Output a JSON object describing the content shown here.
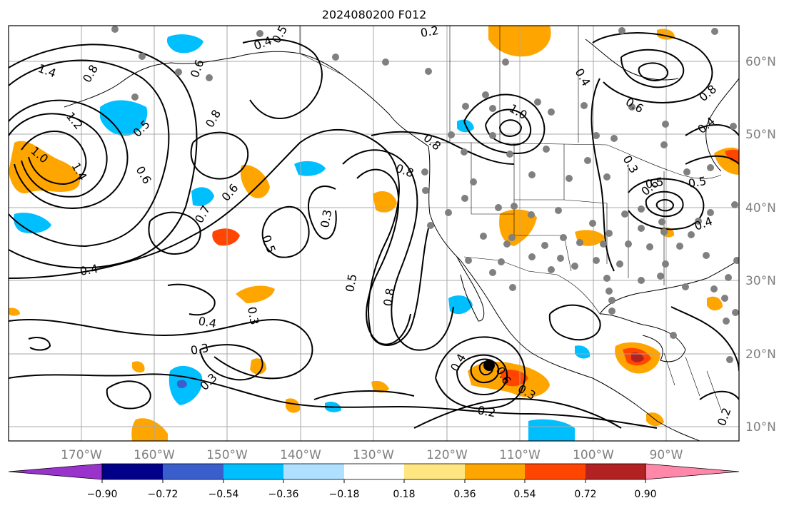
{
  "title": "2024080200 F012",
  "lon_labels": [
    "170°W",
    "160°W",
    "150°W",
    "140°W",
    "130°W",
    "120°W",
    "110°W",
    "100°W",
    "90°W"
  ],
  "lat_labels": [
    "60°N",
    "50°N",
    "40°N",
    "30°N",
    "20°N",
    "10°N"
  ],
  "contour_labels": [
    "1.4",
    "1.2",
    "1.0",
    "0.8",
    "1.4",
    "0.5",
    "0.6",
    "0.8",
    "0.4",
    "0.5",
    "0.6",
    "0.7",
    "0.6",
    "0.5",
    "0.3",
    "0.4",
    "0.3",
    "0.3",
    "0.4",
    "0.3",
    "0.5",
    "0.8",
    "0.8",
    "0.8",
    "0.2",
    "1.0",
    "0.5",
    "0.3",
    "0.6",
    "0.8",
    "0.4",
    "0.5",
    "0.6",
    "0.4",
    "0.2",
    "0.6",
    "0.4",
    "0.3",
    "0.2",
    "0.4"
  ],
  "colorbar": {
    "colors": [
      "#9933cc",
      "#000088",
      "#3a5fcd",
      "#00bfff",
      "#b0e0ff",
      "#ffffff",
      "#ffe680",
      "#ffa500",
      "#ff4500",
      "#b22222",
      "#ff88aa"
    ],
    "tick_labels": [
      "−0.90",
      "−0.72",
      "−0.54",
      "−0.36",
      "−0.18",
      "0.18",
      "0.36",
      "0.54",
      "0.72",
      "0.90"
    ]
  },
  "colors": {
    "orange": "#ffa500",
    "red_orange": "#ff4500",
    "dark_red": "#b22222",
    "cyan": "#00bfff",
    "blue": "#3a5fcd",
    "dots": "#808080",
    "grid": "#a9a9a9",
    "axis_label": "#808080"
  }
}
